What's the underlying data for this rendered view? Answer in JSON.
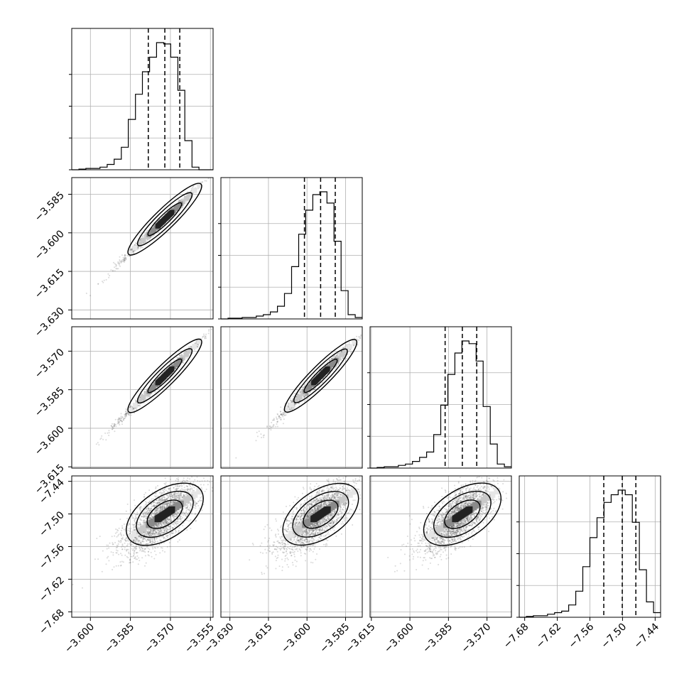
{
  "figure": {
    "type": "corner-plot",
    "grid": true
  },
  "colors": {
    "frame": "#000000",
    "grid": "#b0b0b0",
    "points": "#555555",
    "contour": "#000000"
  },
  "params": [
    {
      "range": [
        -3.607,
        -3.554
      ],
      "ticks": [
        -3.6,
        -3.585,
        -3.57,
        -3.555
      ],
      "tick_labels": [
        "−3.600",
        "−3.585",
        "−3.570",
        "−3.555"
      ],
      "quantiles": [
        -3.5783,
        -3.5721,
        -3.5665
      ]
    },
    {
      "range": [
        -3.6335,
        -3.5785
      ],
      "ticks": [
        -3.63,
        -3.615,
        -3.6,
        -3.585
      ],
      "tick_labels": [
        "−3.630",
        "−3.615",
        "−3.600",
        "−3.585"
      ],
      "quantiles": [
        -3.601,
        -3.5947,
        -3.589
      ]
    },
    {
      "range": [
        -3.6155,
        -3.5605
      ],
      "ticks": [
        -3.615,
        -3.6,
        -3.585,
        -3.57
      ],
      "tick_labels": [
        "−3.615",
        "−3.600",
        "−3.585",
        "−3.570"
      ],
      "quantiles": [
        -3.5863,
        -3.5796,
        -3.574
      ]
    },
    {
      "range": [
        -7.69,
        -7.43
      ],
      "ticks": [
        -7.68,
        -7.62,
        -7.56,
        -7.5,
        -7.44
      ],
      "tick_labels": [
        "−7.68",
        "−7.62",
        "−7.56",
        "−7.50",
        "−7.44"
      ],
      "quantiles": [
        -7.5345,
        -7.5005,
        -7.4755
      ]
    }
  ],
  "chart_data": [
    {
      "type": "histogram",
      "panel": [
        0,
        0
      ],
      "param": 0,
      "bin_edges": [
        -3.607,
        -3.6043,
        -3.6017,
        -3.599,
        -3.5964,
        -3.5937,
        -3.5911,
        -3.5884,
        -3.5858,
        -3.5831,
        -3.5805,
        -3.5778,
        -3.5752,
        -3.5725,
        -3.5699,
        -3.5672,
        -3.5646,
        -3.5619,
        -3.5593,
        -3.5566,
        -3.554
      ],
      "values": [
        0,
        0.5,
        1,
        1,
        2,
        4,
        8,
        17,
        38,
        57,
        74,
        85,
        96,
        95,
        85,
        60,
        22,
        2,
        0,
        0
      ]
    },
    {
      "type": "histogram",
      "panel": [
        1,
        1
      ],
      "param": 1,
      "bin_edges": [
        -3.6335,
        -3.63075,
        -3.628,
        -3.62525,
        -3.6225,
        -3.61975,
        -3.617,
        -3.61425,
        -3.6115,
        -3.60875,
        -3.606,
        -3.60325,
        -3.6005,
        -3.59775,
        -3.595,
        -3.59225,
        -3.5895,
        -3.58675,
        -3.584,
        -3.58125,
        -3.5785
      ],
      "values": [
        0,
        0.5,
        0.5,
        1,
        1,
        2,
        3,
        5,
        9,
        18,
        37,
        60,
        77,
        88,
        90,
        82,
        55,
        20,
        3,
        1
      ]
    },
    {
      "type": "histogram",
      "panel": [
        2,
        2
      ],
      "param": 2,
      "bin_edges": [
        -3.6155,
        -3.61275,
        -3.61,
        -3.60725,
        -3.6045,
        -3.60175,
        -3.599,
        -3.59625,
        -3.5935,
        -3.59075,
        -3.588,
        -3.58525,
        -3.5825,
        -3.57975,
        -3.577,
        -3.57425,
        -3.5715,
        -3.56875,
        -3.566,
        -3.56325,
        -3.5605
      ],
      "values": [
        0,
        0.5,
        1,
        1,
        2,
        3,
        5,
        8,
        12,
        25,
        47,
        70,
        86,
        95,
        93,
        80,
        46,
        18,
        3,
        1
      ]
    },
    {
      "type": "histogram",
      "panel": [
        3,
        3
      ],
      "param": 3,
      "bin_edges": [
        -7.69,
        -7.677,
        -7.664,
        -7.651,
        -7.638,
        -7.625,
        -7.612,
        -7.599,
        -7.586,
        -7.573,
        -7.56,
        -7.547,
        -7.534,
        -7.521,
        -7.508,
        -7.495,
        -7.482,
        -7.469,
        -7.456,
        -7.443,
        -7.43
      ],
      "values": [
        0,
        0.5,
        1,
        1,
        2,
        3,
        4,
        8,
        17,
        33,
        52,
        65,
        75,
        80,
        83,
        80,
        62,
        31,
        10,
        3
      ]
    },
    {
      "type": "scatter",
      "panel": [
        1,
        0
      ],
      "x_param": 0,
      "y_param": 1,
      "correlation": 0.99
    },
    {
      "type": "scatter",
      "panel": [
        2,
        0
      ],
      "x_param": 0,
      "y_param": 2,
      "correlation": 0.99
    },
    {
      "type": "scatter",
      "panel": [
        2,
        1
      ],
      "x_param": 1,
      "y_param": 2,
      "correlation": 0.98
    },
    {
      "type": "scatter",
      "panel": [
        3,
        0
      ],
      "x_param": 0,
      "y_param": 3,
      "correlation": 0.65
    },
    {
      "type": "scatter",
      "panel": [
        3,
        1
      ],
      "x_param": 1,
      "y_param": 3,
      "correlation": 0.65
    },
    {
      "type": "scatter",
      "panel": [
        3,
        2
      ],
      "x_param": 2,
      "y_param": 3,
      "correlation": 0.65
    }
  ]
}
